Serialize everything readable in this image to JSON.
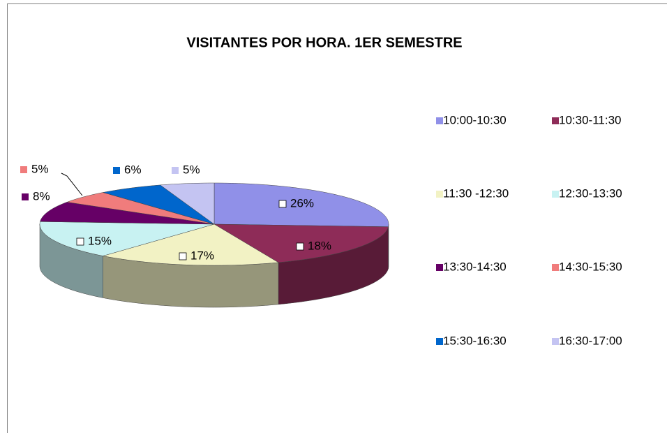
{
  "chart_data": {
    "type": "pie",
    "title": "VISITANTES POR HORA. 1ER SEMESTRE",
    "categories": [
      "10:00-10:30",
      "10:30-11:30",
      "11:30 -12:30",
      "12:30-13:30",
      "13:30-14:30",
      "14:30-15:30",
      "15:30-16:30",
      "16:30-17:00"
    ],
    "values": [
      26,
      18,
      17,
      15,
      8,
      5,
      6,
      5
    ],
    "value_labels": [
      "26%",
      "18%",
      "17%",
      "15%",
      "8%",
      "5%",
      "6%",
      "5%"
    ],
    "colors": [
      "#9090e8",
      "#8e2c58",
      "#f2f2c4",
      "#c8f2f2",
      "#660066",
      "#f07c7c",
      "#0066cc",
      "#c4c4f2"
    ],
    "legend": "right",
    "three_d": true
  }
}
